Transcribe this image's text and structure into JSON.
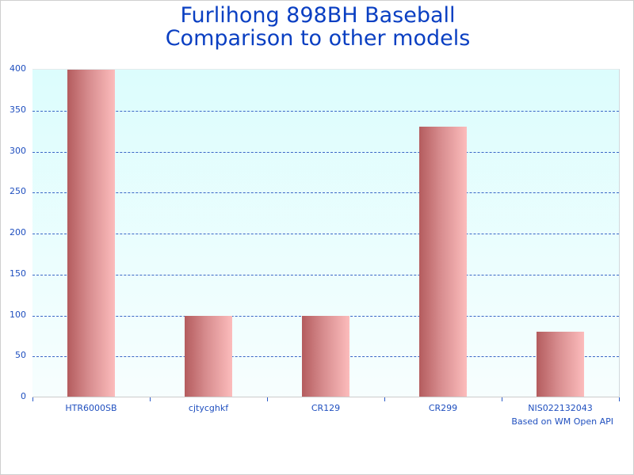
{
  "chart_data": {
    "type": "bar",
    "title": "Furlihong 898BH Baseball",
    "subtitle": "Comparison to other models",
    "categories": [
      "HTR6000SB",
      "cjtycghkf",
      "CR129",
      "CR299",
      "NIS022132043"
    ],
    "values": [
      400,
      100,
      100,
      330,
      80
    ],
    "xlabel": "",
    "ylabel": "",
    "ylim": [
      0,
      400
    ],
    "yticks": [
      0,
      50,
      100,
      150,
      200,
      250,
      300,
      350,
      400
    ],
    "grid": true,
    "legend": null,
    "annotation": "Based on WM Open API"
  },
  "colors": {
    "title": "#0a3fc2",
    "bar_dark": "#b45c5e",
    "bar_light": "#fcbcbc",
    "plot_top": "#dcfdfd",
    "plot_bottom": "#f7fefe",
    "grid": "#3a66c6"
  }
}
